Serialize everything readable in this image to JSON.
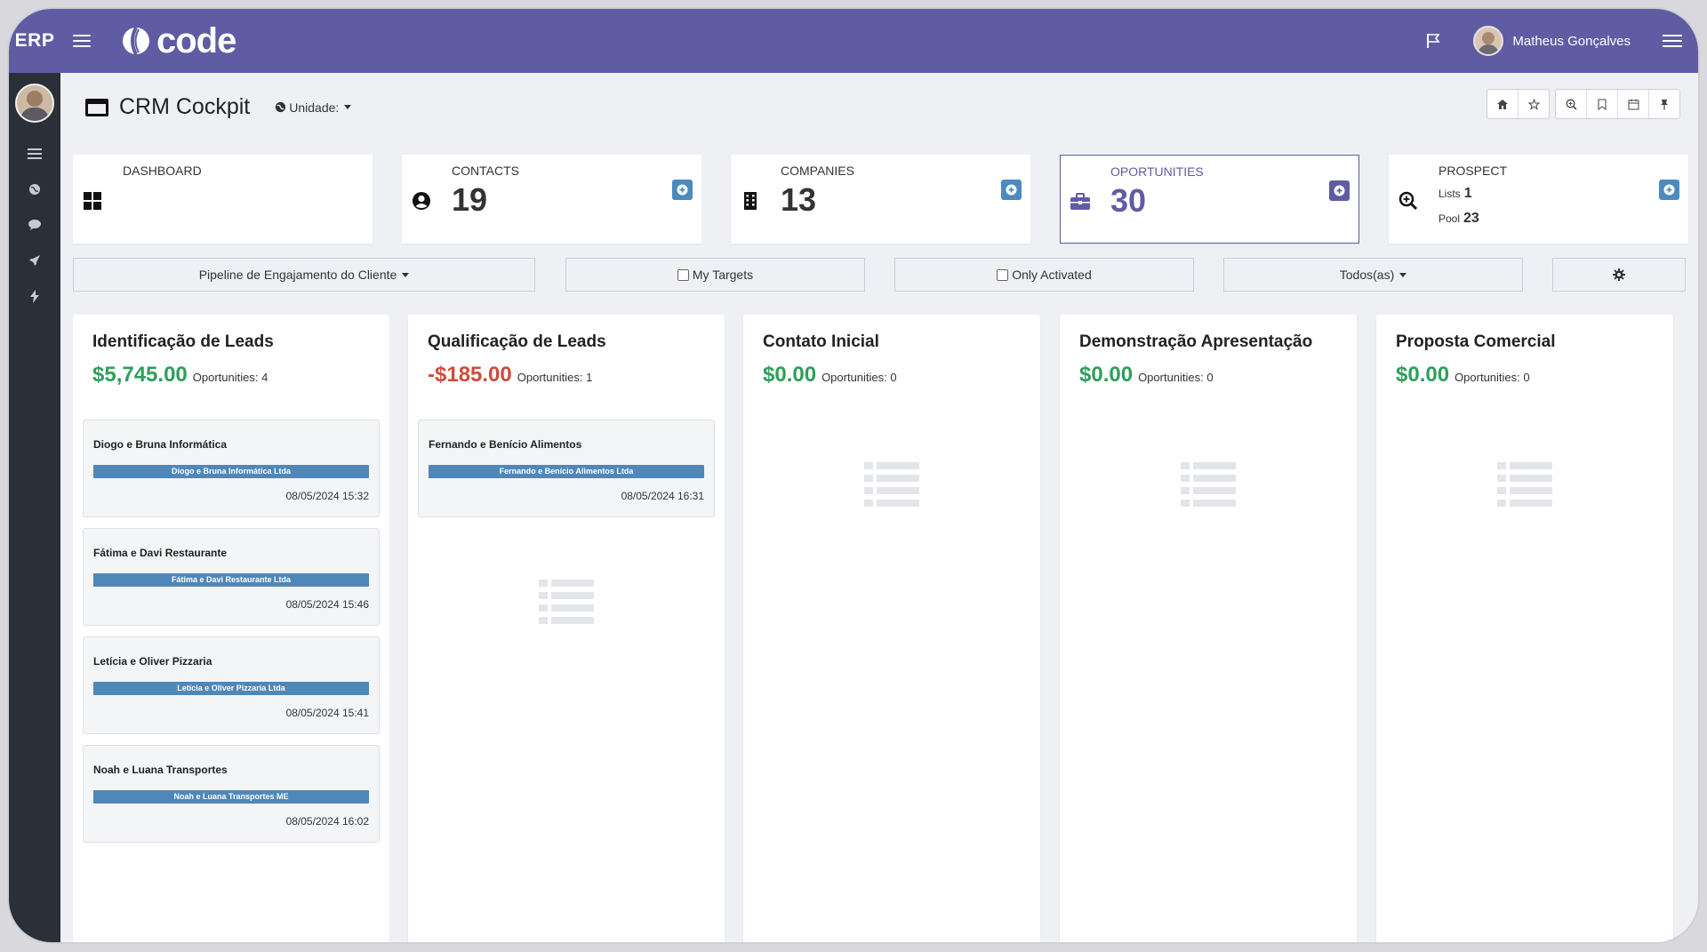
{
  "topbar": {
    "brand": "ERP",
    "logo_text": "code",
    "user_name": "Matheus Gonçalves"
  },
  "header": {
    "title": "CRM Cockpit",
    "unit_label": "Unidade:"
  },
  "stats": [
    {
      "title": "DASHBOARD",
      "value": "",
      "icon": "dashboard-grid-icon"
    },
    {
      "title": "CONTACTS",
      "value": "19",
      "icon": "user-circle-icon"
    },
    {
      "title": "COMPANIES",
      "value": "13",
      "icon": "building-icon"
    },
    {
      "title": "OPORTUNITIES",
      "value": "30",
      "icon": "briefcase-icon"
    },
    {
      "title": "PROSPECT",
      "lists_label": "Lists",
      "lists_value": "1",
      "pool_label": "Pool",
      "pool_value": "23",
      "icon": "search-plus-icon"
    }
  ],
  "filters": {
    "pipeline": "Pipeline de Engajamento do Cliente",
    "my_targets": "My Targets",
    "only_activated": "Only Activated",
    "todos": "Todos(as)"
  },
  "columns": [
    {
      "title": "Identificação de Leads",
      "amount": "$5,745.00",
      "opps": "Oportunities: 4",
      "cards": [
        {
          "title": "Diogo e Bruna Informática",
          "tag": "Diogo e Bruna Informática Ltda",
          "date": "08/05/2024 15:32"
        },
        {
          "title": "Fátima e Davi Restaurante",
          "tag": "Fátima e Davi Restaurante Ltda",
          "date": "08/05/2024 15:46"
        },
        {
          "title": "Letícia e Oliver Pizzaria",
          "tag": "Letícia e Oliver Pizzaria Ltda",
          "date": "08/05/2024 15:41"
        },
        {
          "title": "Noah e Luana Transportes",
          "tag": "Noah e Luana Transportes ME",
          "date": "08/05/2024 16:02"
        }
      ]
    },
    {
      "title": "Qualificação de Leads",
      "amount": "-$185.00",
      "opps": "Oportunities: 1",
      "cards": [
        {
          "title": "Fernando e Benício Alimentos",
          "tag": "Fernando e Benício Alimentos Ltda",
          "date": "08/05/2024 16:31"
        }
      ]
    },
    {
      "title": "Contato Inicial",
      "amount": "$0.00",
      "opps": "Oportunities: 0",
      "cards": []
    },
    {
      "title": "Demonstração Apresentação",
      "amount": "$0.00",
      "opps": "Oportunities: 0",
      "cards": []
    },
    {
      "title": "Proposta Comercial",
      "amount": "$0.00",
      "opps": "Oportunities: 0",
      "cards": []
    }
  ],
  "colors": {
    "brand": "#5f5ca3",
    "sidebar": "#2b2f38",
    "positive": "#2f9e5a",
    "negative": "#d04b3c",
    "tag": "#4f87b8"
  }
}
